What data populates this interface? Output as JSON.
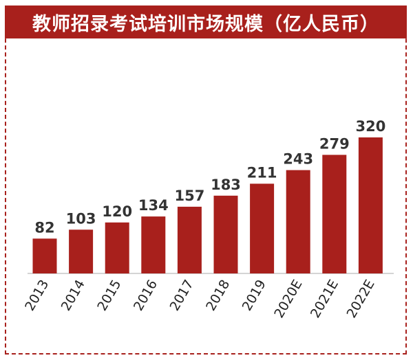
{
  "title": "教师招录考试培训市场规模（亿人民币）",
  "colors": {
    "bar": "#a8201c",
    "title_bg": "#a8201c",
    "title_text": "#ffffff",
    "value_text": "#333333"
  },
  "chart_data": {
    "type": "bar",
    "title": "教师招录考试培训市场规模（亿人民币）",
    "categories": [
      "2013",
      "2014",
      "2015",
      "2016",
      "2017",
      "2018",
      "2019",
      "2020E",
      "2021E",
      "2022E"
    ],
    "values": [
      82,
      103,
      120,
      134,
      157,
      183,
      211,
      243,
      279,
      320
    ],
    "value_labels": [
      "82",
      "103",
      "120",
      "134",
      "157",
      "183",
      "211",
      "243",
      "279",
      "320"
    ],
    "xlabel": "",
    "ylabel": "",
    "ylim": [
      0,
      320
    ],
    "grid": false,
    "legend": "none",
    "tick_rotation": -60
  }
}
